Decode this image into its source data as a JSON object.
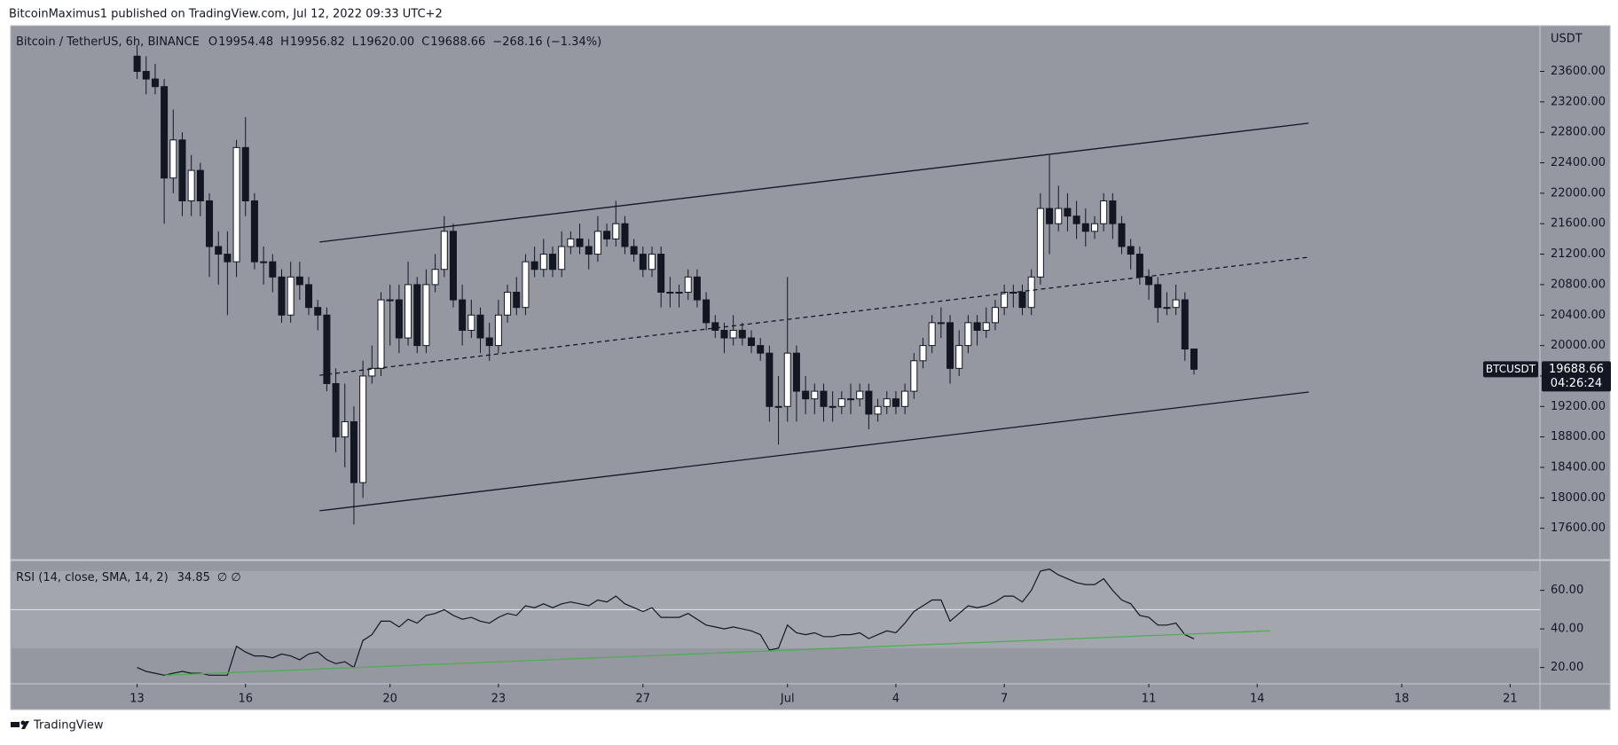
{
  "header": "BitcoinMaximus1 published on TradingView.com, Jul 12, 2022 09:33 UTC+2",
  "footer": "TradingView",
  "chart_data": [
    {
      "type": "candlestick",
      "title": "Bitcoin / TetherUS, 6h, BINANCE",
      "ohlc_labels": [
        {
          "key": "O",
          "label": "19954.48"
        },
        {
          "key": "H",
          "label": "19956.82"
        },
        {
          "key": "L",
          "label": "19620.00"
        },
        {
          "key": "C",
          "label": "19688.66"
        }
      ],
      "change_label": "−268.16 (−1.34%)",
      "symbol": "BTCUSDT",
      "last_price_label": "19688.66",
      "countdown": "04:26:24",
      "axis_label": "USDT",
      "up_color": "#ffffff",
      "down_color": "#131722",
      "open": [
        23800,
        23600,
        23500,
        23400,
        22200,
        22700,
        21900,
        22300,
        21900,
        21300,
        21200,
        21100,
        22600,
        21900,
        21100,
        21100,
        20900,
        20400,
        20900,
        20800,
        20500,
        20400,
        19500,
        18800,
        19000,
        18200,
        19600,
        19700,
        20600,
        20600,
        20100,
        20800,
        20000,
        20800,
        21000,
        21500,
        20600,
        20200,
        20400,
        20100,
        20000,
        20400,
        20700,
        20500,
        21100,
        21000,
        21200,
        21000,
        21300,
        21400,
        21300,
        21200,
        21500,
        21400,
        21600,
        21300,
        21200,
        21000,
        21200,
        20700,
        20700,
        20700,
        20900,
        20600,
        20300,
        20200,
        20100,
        20200,
        20100,
        20000,
        19900,
        19200,
        19200,
        19900,
        19400,
        19300,
        19400,
        19200,
        19200,
        19300,
        19300,
        19400,
        19100,
        19200,
        19300,
        19200,
        19400,
        19800,
        20000,
        20300,
        20300,
        19700,
        20000,
        20300,
        20200,
        20300,
        20500,
        20700,
        20700,
        20500,
        20900,
        21800,
        21600,
        21800,
        21700,
        21600,
        21500,
        21600,
        21900,
        21600,
        21300,
        21200,
        20900,
        20800,
        20500,
        20500,
        20600,
        19954.48
      ],
      "high": [
        23950,
        23800,
        23700,
        23500,
        23100,
        22800,
        22500,
        22400,
        22000,
        21500,
        21500,
        22700,
        23000,
        22000,
        21300,
        21200,
        21000,
        21100,
        21100,
        20900,
        20600,
        20500,
        19700,
        19500,
        19200,
        19800,
        20000,
        20700,
        20800,
        20800,
        21100,
        20900,
        21000,
        21200,
        21700,
        21600,
        20800,
        20600,
        20500,
        20300,
        20600,
        20800,
        20900,
        21200,
        21300,
        21400,
        21300,
        21500,
        21500,
        21600,
        21400,
        21700,
        21600,
        21900,
        21700,
        21400,
        21300,
        21300,
        21300,
        20900,
        20800,
        21000,
        21000,
        20700,
        20400,
        20300,
        20400,
        20300,
        20200,
        20100,
        20000,
        19600,
        20900,
        20000,
        19600,
        19500,
        19500,
        19400,
        19400,
        19500,
        19500,
        19500,
        19300,
        19400,
        19400,
        19500,
        19900,
        20100,
        20400,
        20500,
        20400,
        20200,
        20400,
        20400,
        20500,
        20600,
        20800,
        20800,
        20800,
        21000,
        22000,
        22500,
        22100,
        22000,
        21900,
        21800,
        21700,
        22000,
        22000,
        21700,
        21400,
        21300,
        21000,
        20900,
        20700,
        20800,
        20700,
        19956.82
      ],
      "low": [
        23500,
        23300,
        23300,
        21600,
        22000,
        21700,
        21700,
        21700,
        20900,
        20800,
        20400,
        20900,
        21700,
        21000,
        20800,
        20700,
        20300,
        20300,
        20600,
        20400,
        20200,
        19400,
        18600,
        18400,
        17650,
        18000,
        19500,
        19600,
        20000,
        19900,
        20000,
        19900,
        19900,
        20700,
        20900,
        20500,
        20000,
        20100,
        19900,
        19800,
        19900,
        20300,
        20400,
        20400,
        20900,
        20900,
        20900,
        20900,
        21200,
        21200,
        21000,
        21100,
        21300,
        21300,
        21200,
        21100,
        20900,
        20900,
        20500,
        20500,
        20500,
        20600,
        20500,
        20200,
        20100,
        19900,
        20000,
        20000,
        19900,
        19800,
        19000,
        18700,
        19000,
        19000,
        19100,
        19100,
        19000,
        19000,
        19100,
        19100,
        19200,
        18900,
        19000,
        19100,
        19100,
        19100,
        19300,
        19700,
        19900,
        20100,
        19500,
        19600,
        19900,
        20000,
        20100,
        20200,
        20400,
        20500,
        20400,
        20400,
        20800,
        21200,
        21500,
        21500,
        21400,
        21300,
        21400,
        21500,
        21400,
        21200,
        21000,
        20800,
        20600,
        20300,
        20400,
        20400,
        19800,
        19620
      ],
      "close": [
        23600,
        23500,
        23400,
        22200,
        22700,
        21900,
        22300,
        21900,
        21300,
        21200,
        21100,
        22600,
        21900,
        21100,
        21100,
        20900,
        20400,
        20900,
        20800,
        20500,
        20400,
        19500,
        18800,
        19000,
        18200,
        19600,
        19700,
        20600,
        20600,
        20100,
        20800,
        20000,
        20800,
        21000,
        21500,
        20600,
        20200,
        20400,
        20100,
        20000,
        20400,
        20700,
        20500,
        21100,
        21000,
        21200,
        21000,
        21300,
        21400,
        21300,
        21200,
        21500,
        21400,
        21600,
        21300,
        21200,
        21000,
        21200,
        20700,
        20700,
        20700,
        20900,
        20600,
        20300,
        20200,
        20100,
        20200,
        20100,
        20000,
        19900,
        19200,
        19200,
        19900,
        19400,
        19300,
        19400,
        19200,
        19200,
        19300,
        19300,
        19400,
        19100,
        19200,
        19300,
        19200,
        19400,
        19800,
        20000,
        20300,
        20300,
        19700,
        20000,
        20300,
        20200,
        20300,
        20500,
        20700,
        20700,
        20500,
        20900,
        21800,
        21600,
        21800,
        21700,
        21600,
        21500,
        21600,
        21900,
        21600,
        21300,
        21200,
        20900,
        20800,
        20500,
        20500,
        20600,
        19954.48,
        19688.66
      ],
      "xlim": [
        -14,
        155.3
      ],
      "ylim": [
        17200,
        24200
      ],
      "yticks": [
        {
          "value": 17600,
          "label": "17600.00"
        },
        {
          "value": 18000,
          "label": "18000.00"
        },
        {
          "value": 18400,
          "label": "18400.00"
        },
        {
          "value": 18800,
          "label": "18800.00"
        },
        {
          "value": 19200,
          "label": "19200.00"
        },
        {
          "value": 19600,
          "label": "19600.00"
        },
        {
          "value": 20000,
          "label": "20000.00"
        },
        {
          "value": 20400,
          "label": "20400.00"
        },
        {
          "value": 20800,
          "label": "20800.00"
        },
        {
          "value": 21200,
          "label": "21200.00"
        },
        {
          "value": 21600,
          "label": "21600.00"
        },
        {
          "value": 22000,
          "label": "22000.00"
        },
        {
          "value": 22400,
          "label": "22400.00"
        },
        {
          "value": 22800,
          "label": "22800.00"
        },
        {
          "value": 23200,
          "label": "23200.00"
        },
        {
          "value": 23600,
          "label": "23600.00"
        }
      ],
      "trendlines": [
        {
          "style": "solid",
          "points": [
            [
              20.2,
              21360
            ],
            [
              129.7,
              22920
            ]
          ]
        },
        {
          "style": "dashed",
          "points": [
            [
              20.2,
              19610
            ],
            [
              129.7,
              21160
            ]
          ]
        },
        {
          "style": "solid",
          "points": [
            [
              20.2,
              17830
            ],
            [
              129.7,
              19390
            ]
          ]
        }
      ]
    },
    {
      "type": "line",
      "title": "RSI (14, close, SMA, 14, 2)",
      "value_label": "34.85",
      "extra": "∅ ∅",
      "color": "#131722",
      "values": [
        20,
        18,
        17,
        16,
        17,
        18,
        17,
        17,
        16,
        16,
        16,
        31,
        28,
        26,
        26,
        25,
        27,
        26,
        24,
        27,
        28,
        24,
        22,
        23,
        20,
        34,
        37,
        44,
        44,
        41,
        45,
        43,
        47,
        48,
        50,
        47,
        45,
        46,
        44,
        43,
        46,
        48,
        47,
        52,
        51,
        53,
        51,
        53,
        54,
        53,
        52,
        55,
        54,
        57,
        53,
        51,
        49,
        51,
        46,
        46,
        46,
        48,
        45,
        42,
        41,
        40,
        41,
        40,
        39,
        37,
        29,
        30,
        42,
        38,
        37,
        38,
        36,
        36,
        37,
        37,
        38,
        35,
        37,
        39,
        38,
        43,
        49,
        52,
        55,
        55,
        44,
        48,
        52,
        51,
        52,
        54,
        57,
        57,
        54,
        60,
        70,
        71,
        68,
        66,
        64,
        63,
        63,
        66,
        60,
        55,
        53,
        47,
        46,
        42,
        42,
        43,
        37,
        34.85
      ],
      "xlim": [
        -14,
        155.3
      ],
      "xticks": [
        {
          "value": 0,
          "label": "13"
        },
        {
          "value": 12,
          "label": "16"
        },
        {
          "value": 28,
          "label": "20"
        },
        {
          "value": 40,
          "label": "23"
        },
        {
          "value": 56,
          "label": "27"
        },
        {
          "value": 72,
          "label": "Jul"
        },
        {
          "value": 84,
          "label": "4"
        },
        {
          "value": 96,
          "label": "7"
        },
        {
          "value": 112,
          "label": "11"
        },
        {
          "value": 124,
          "label": "14"
        },
        {
          "value": 140,
          "label": "18"
        },
        {
          "value": 152,
          "label": "21"
        }
      ],
      "ylim": [
        12,
        75
      ],
      "yticks": [
        {
          "value": 20,
          "label": "20.00"
        },
        {
          "value": 40,
          "label": "40.00"
        },
        {
          "value": 60,
          "label": "60.00"
        }
      ],
      "levels": [
        30,
        50,
        70
      ],
      "trendlines": [
        {
          "style": "solid",
          "color": "#4caf50",
          "points": [
            [
              3.1,
              16
            ],
            [
              125.4,
              39
            ]
          ]
        }
      ]
    }
  ]
}
